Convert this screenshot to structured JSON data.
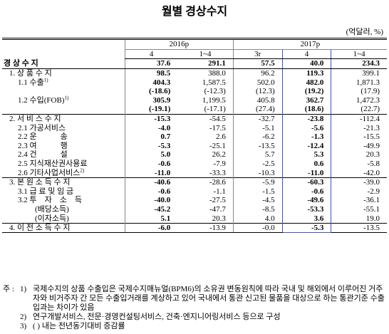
{
  "title": "월별 경상수지",
  "unit": "(억달러, %)",
  "table": {
    "groups": [
      {
        "label": "2016p",
        "span": 2
      },
      {
        "label": "2017p",
        "span": 3
      }
    ],
    "columns": [
      "4",
      "1~4",
      "3r",
      "4",
      "1~4"
    ],
    "highlight_column": 3,
    "bold_columns": [
      0,
      3
    ],
    "rows": [
      {
        "label": "경 상 수 지",
        "values": [
          "37.6",
          "291.1",
          "57.5",
          "40.0",
          "234.3"
        ]
      },
      {
        "label": "1. 상 품 수 지",
        "values": [
          "98.5",
          "388.0",
          "96.2",
          "119.3",
          "399.1"
        ]
      },
      {
        "label": "1.1 수출",
        "note": "1)",
        "values": [
          "404.3",
          "1,587.5",
          "502.0",
          "482.0",
          "1,871.3"
        ]
      },
      {
        "label": null,
        "values": [
          "(-18.6)",
          "(-12.3)",
          "(12.3)",
          "(19.2)",
          "(17.9)"
        ]
      },
      {
        "label": "1.2 수입(FOB)",
        "note": "1)",
        "values": [
          "305.9",
          "1,199.5",
          "405.8",
          "362.7",
          "1,472.3"
        ]
      },
      {
        "label": null,
        "values": [
          "(-19.1)",
          "(-17.1)",
          "(27.4)",
          "(18.6)",
          "(22.7)"
        ]
      },
      {
        "label": "2. 서 비 스 수 지",
        "values": [
          "-15.3",
          "-54.5",
          "-32.7",
          "-23.8",
          "-112.4"
        ]
      },
      {
        "label": "2.1 가공서비스",
        "values": [
          "-4.0",
          "-17.5",
          "-5.1",
          "-5.6",
          "-21.3"
        ]
      },
      {
        "label": "2.2 운　　　송",
        "values": [
          "0.7",
          "2.6",
          "-6.2",
          "-1.3",
          "-15.5"
        ]
      },
      {
        "label": "2.3 여　　　행",
        "values": [
          "-5.3",
          "-25.1",
          "-13.5",
          "-12.4",
          "-49.9"
        ]
      },
      {
        "label": "2.4 건　　　설",
        "values": [
          "5.0",
          "26.2",
          "5.7",
          "5.3",
          "20.3"
        ]
      },
      {
        "label": "2.5 지식재산권사용료",
        "values": [
          "-0.6",
          "-7.9",
          "-2.5",
          "0.6",
          "-5.8"
        ]
      },
      {
        "label": "2.6 기타사업서비스",
        "note": "2)",
        "values": [
          "-11.0",
          "-33.3",
          "-10.3",
          "-11.0",
          "-42.0"
        ]
      },
      {
        "label": "3. 본 원 소 득 수 지",
        "values": [
          "-40.6",
          "-28.6",
          "-5.9",
          "-60.3",
          "-39.0"
        ]
      },
      {
        "label": "3.1 급 료 및 임 금",
        "values": [
          "-0.6",
          "-1.1",
          "-1.5",
          "-0.6",
          "-2.9"
        ]
      },
      {
        "label": "3.2 투　자　소　득",
        "values": [
          "-40.0",
          "-27.5",
          "-4.5",
          "-49.6",
          "-36.1"
        ]
      },
      {
        "label": "(배당소득)",
        "values": [
          "-45.2",
          "-47.7",
          "-8.5",
          "-53.3",
          "-55.1"
        ]
      },
      {
        "label": "(이자소득)",
        "values": [
          "5.1",
          "20.3",
          "4.0",
          "3.6",
          "19.0"
        ]
      },
      {
        "label": "4. 이 전 소 득 수 지",
        "values": [
          "-6.0",
          "-13.9",
          "-0.0",
          "-5.3",
          "-13.5"
        ]
      }
    ]
  },
  "notes": {
    "prefix": "주 :",
    "items": [
      {
        "num": "1)",
        "text": "국제수지의 상품 수출입은 국제수지매뉴얼(BPM6)의 소유권 변동원칙에 따라 국내 및 해외에서 이루어진 거주자와 비거주자 간 모든 수출입거래를 계상하고 있어 국내에서 통관 신고된 물품을 대상으로 하는 통관기준 수출입과는 차이가 있음"
      },
      {
        "num": "2)",
        "text": "연구개발서비스, 전문·경영컨설팅서비스, 건축·엔지니어링서비스 등으로 구성"
      },
      {
        "num": "3)",
        "text": "( ) 내는 전년동기대비 증감률"
      }
    ]
  }
}
